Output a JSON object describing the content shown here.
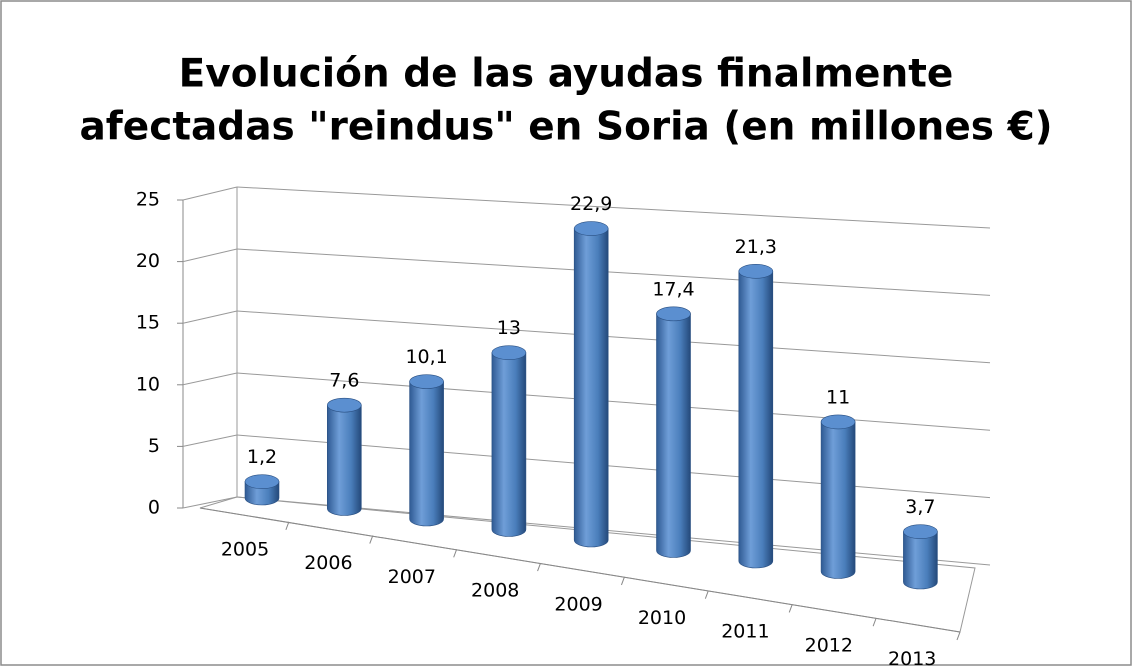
{
  "chart_data": {
    "type": "bar3d",
    "title": [
      "Evolución de las ayudas finalmente",
      "afectadas \"reindus\" en Soria (en millones €)"
    ],
    "categories": [
      "2005",
      "2006",
      "2007",
      "2008",
      "2009",
      "2010",
      "2011",
      "2012",
      "2013"
    ],
    "values": [
      1.2,
      7.6,
      10.1,
      13,
      22.9,
      17.4,
      21.3,
      11,
      3.7
    ],
    "value_labels": [
      "1,2",
      "7,6",
      "10,1",
      "13",
      "22,9",
      "17,4",
      "21,3",
      "11",
      "3,7"
    ],
    "color": "#4a7ebb",
    "ylim": [
      0,
      25
    ],
    "yticks": [
      0,
      5,
      10,
      15,
      20,
      25
    ],
    "grid": true
  }
}
